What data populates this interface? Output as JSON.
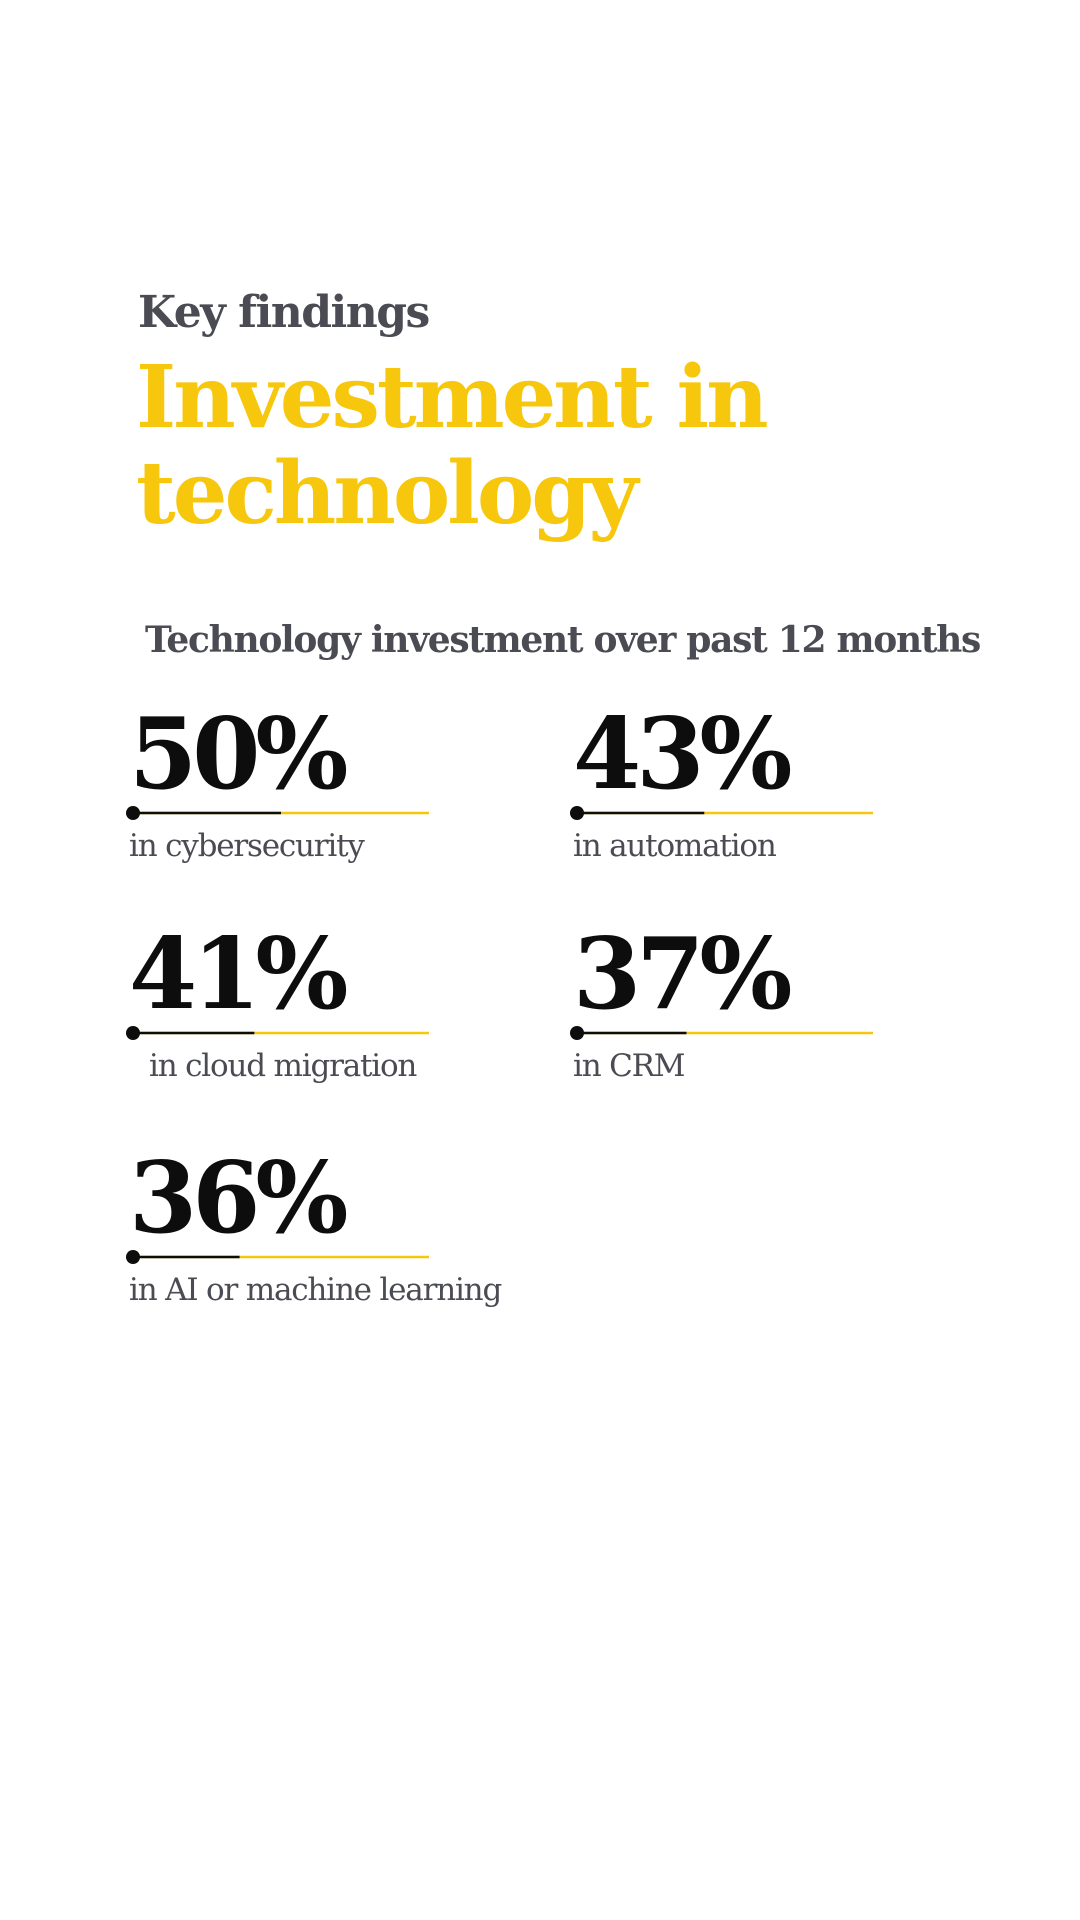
{
  "eyebrow": "Key findings",
  "headline": "Investment in technology",
  "colors": {
    "accent": "#f7c70d",
    "ink": "#0d0d0d",
    "muted_text": "#4a4b53"
  },
  "chart_data": {
    "type": "bar",
    "title": "Technology investment over past 12 months",
    "unit": "%",
    "ylim": [
      0,
      100
    ],
    "categories": [
      "in cybersecurity",
      "in automation",
      "in cloud migration",
      "in CRM",
      "in AI or machine learning"
    ],
    "values": [
      50,
      43,
      41,
      37,
      36
    ],
    "value_labels": [
      "50%",
      "43%",
      "41%",
      "37%",
      "36%"
    ]
  }
}
